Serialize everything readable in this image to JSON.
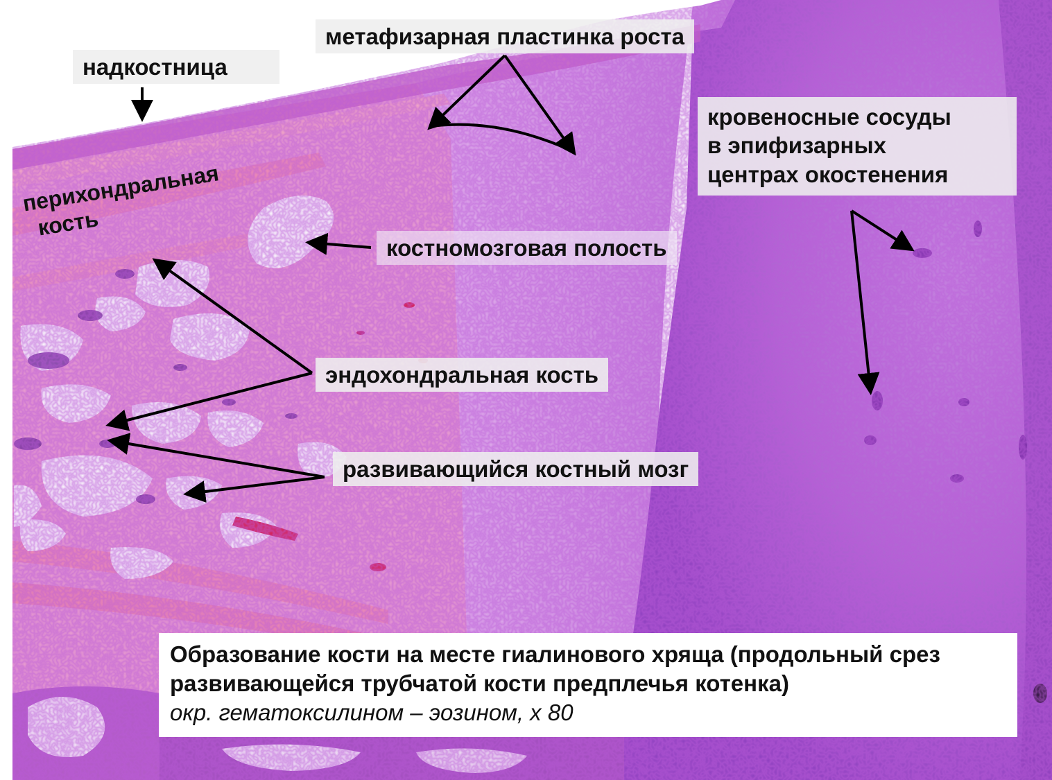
{
  "labels": {
    "periosteum": "надкостница",
    "perichondral": [
      "перихондральная",
      "кость"
    ],
    "metaphyseal": "метафизарная пластинка роста",
    "vessels": [
      "кровеносные сосуды",
      "в эпифизарных",
      "центрах окостенения"
    ],
    "marrow_cavity": "костномозговая полость",
    "endochondral": "эндохондральная кость",
    "bone_marrow": "развивающийся костный мозг"
  },
  "caption": {
    "title": "Образование кости на месте гиалинового хряща (продольный срез развивающейся трубчатой кости предплечья котенка)",
    "stain": "окр. гематоксилином – эозином, х 80"
  },
  "colors": {
    "background": "#ffffff",
    "bone_pink": "#e98cc6",
    "dense_bone": "#f08eb4",
    "cartilage_lilac": "#d79ee6",
    "epiphysis_violet": "#b468d6",
    "nuclei_purple": "#6a2a92",
    "blood_red": "#d81c4c",
    "arrow": "#000000"
  }
}
